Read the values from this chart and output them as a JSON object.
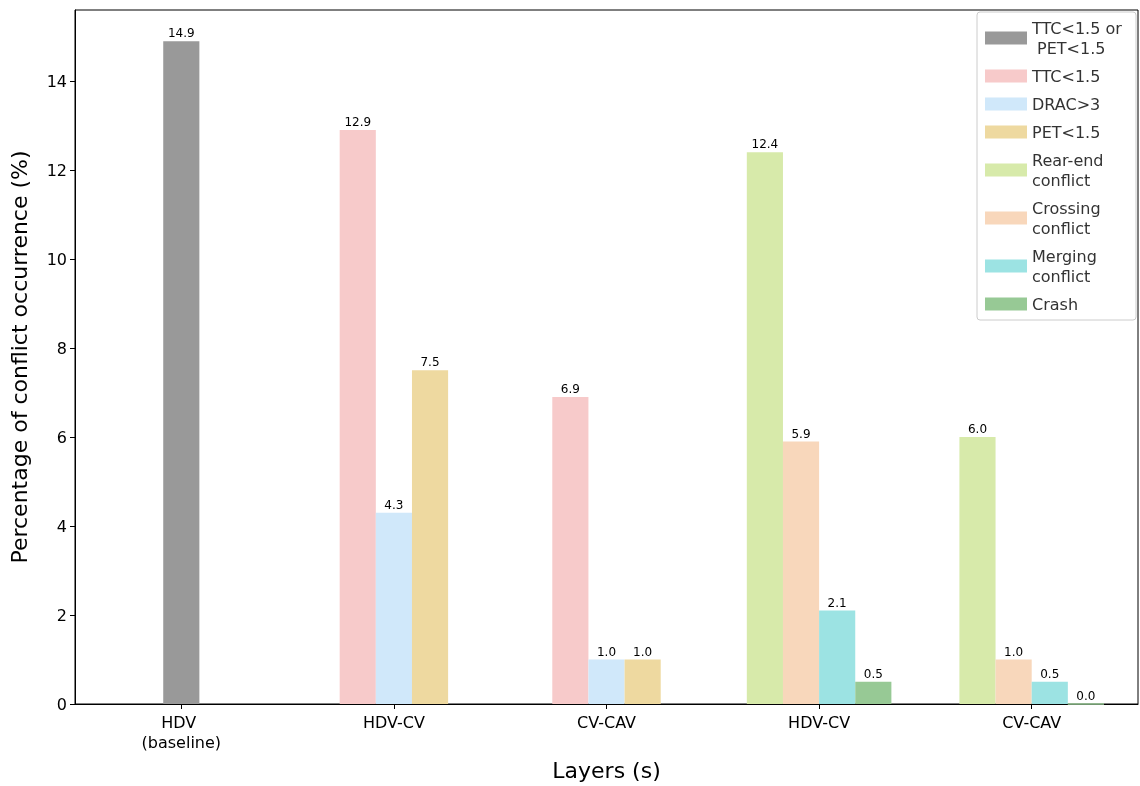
{
  "chart_data": {
    "type": "bar",
    "xlabel": "Layers (s)",
    "ylabel": "Percentage of conflict occurrence (%)",
    "categories": [
      "HDV (baseline)",
      "HDV-CV",
      "CV-CAV",
      "HDV-CV",
      "CV-CAV"
    ],
    "series": [
      {
        "name": "TTC<1.5 or PET<1.5",
        "color": "#999999",
        "values": [
          14.9,
          null,
          null,
          null,
          null
        ],
        "value_labels": [
          "14.9",
          null,
          null,
          null,
          null
        ]
      },
      {
        "name": "TTC<1.5",
        "color": "#f7caca",
        "values": [
          null,
          12.9,
          6.9,
          null,
          null
        ],
        "value_labels": [
          null,
          "12.9",
          "6.9",
          null,
          null
        ]
      },
      {
        "name": "DRAC>3",
        "color": "#d0e8fa",
        "values": [
          null,
          4.3,
          1.0,
          null,
          null
        ],
        "value_labels": [
          null,
          "4.3",
          "1.0",
          null,
          null
        ]
      },
      {
        "name": "PET<1.5",
        "color": "#eed9a0",
        "values": [
          null,
          7.5,
          1.0,
          null,
          null
        ],
        "value_labels": [
          null,
          "7.5",
          "1.0",
          null,
          null
        ]
      },
      {
        "name": "Rear-end conflict",
        "color": "#d7eaaa",
        "values": [
          null,
          null,
          null,
          12.4,
          6.0
        ],
        "value_labels": [
          null,
          null,
          null,
          "12.4",
          "6.0"
        ]
      },
      {
        "name": "Crossing conflict",
        "color": "#f8d7bb",
        "values": [
          null,
          null,
          null,
          5.9,
          1.0
        ],
        "value_labels": [
          null,
          null,
          null,
          "5.9",
          "1.0"
        ]
      },
      {
        "name": "Merging conflict",
        "color": "#9ce3e3",
        "values": [
          null,
          null,
          null,
          2.1,
          0.5
        ],
        "value_labels": [
          null,
          null,
          null,
          "2.1",
          "0.5"
        ]
      },
      {
        "name": "Crash",
        "color": "#97c995",
        "values": [
          null,
          null,
          null,
          0.5,
          0.0
        ],
        "value_labels": [
          null,
          null,
          null,
          "0.5",
          "0.0"
        ]
      }
    ],
    "ylim": [
      0,
      15.6
    ],
    "yticks": [
      0,
      2,
      4,
      6,
      8,
      10,
      12,
      14
    ],
    "grid": false,
    "legend": "top right"
  }
}
